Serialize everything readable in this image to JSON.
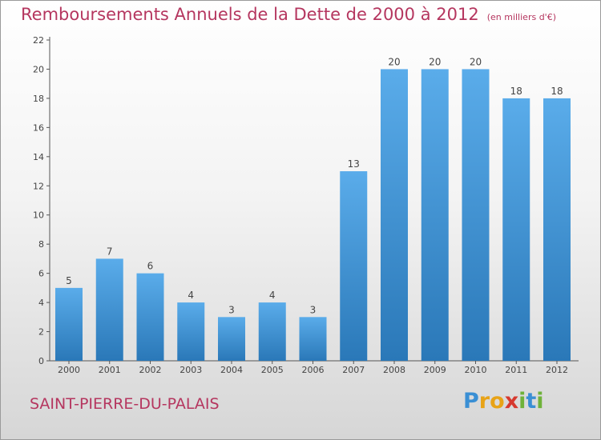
{
  "title": "Remboursements Annuels de la Dette de 2000 à 2012",
  "unit": "(en milliers d'€)",
  "commune": "SAINT-PIERRE-DU-PALAIS",
  "logo": {
    "letters": [
      "P",
      "r",
      "o",
      "x",
      "i",
      "t",
      "i"
    ],
    "colors": [
      "#3a8fd4",
      "#e8a317",
      "#e8a317",
      "#d6392f",
      "#6fb23a",
      "#3a8fd4",
      "#6fb23a"
    ]
  },
  "colors": {
    "bar_light": "#5aacea",
    "bar_dark": "#2a78b8",
    "title": "#b5365f"
  },
  "chart_data": {
    "type": "bar",
    "categories": [
      "2000",
      "2001",
      "2002",
      "2003",
      "2004",
      "2005",
      "2006",
      "2007",
      "2008",
      "2009",
      "2010",
      "2011",
      "2012"
    ],
    "values": [
      5,
      7,
      6,
      4,
      3,
      4,
      3,
      13,
      20,
      20,
      20,
      18,
      18
    ],
    "yticks": [
      0,
      2,
      4,
      6,
      8,
      10,
      12,
      14,
      16,
      18,
      20,
      22
    ],
    "ylim": [
      0,
      22
    ],
    "grid": false,
    "title": "Remboursements Annuels de la Dette de 2000 à 2012",
    "xlabel": "",
    "ylabel": ""
  }
}
